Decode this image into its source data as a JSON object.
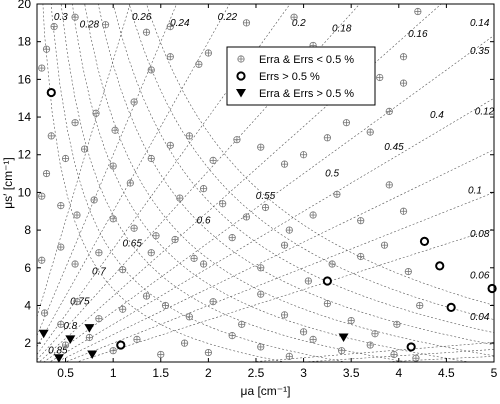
{
  "chart_data": {
    "type": "scatter",
    "xlabel": "μa [cm⁻¹]",
    "ylabel": "μs′ [cm⁻¹]",
    "xlim": [
      0.2,
      5
    ],
    "ylim": [
      1,
      20
    ],
    "xticks": [
      "0.5",
      "1",
      "1.5",
      "2",
      "2.5",
      "3",
      "3.5",
      "4",
      "4.5",
      "5"
    ],
    "yticks": [
      "2",
      "4",
      "6",
      "8",
      "10",
      "12",
      "14",
      "16",
      "18",
      "20"
    ],
    "grid": false,
    "legend_position": "top-right",
    "legend": [
      "Erra & Errs < 0.5 %",
      "Errs > 0.5 %",
      "Erra & Errs > 0.5 %"
    ],
    "series": [
      {
        "name": "Erra & Errs < 0.5 %",
        "marker": "plus-circle",
        "points": [
          [
            0.25,
            16.6
          ],
          [
            0.3,
            17.6
          ],
          [
            0.38,
            18.8
          ],
          [
            0.6,
            19.3
          ],
          [
            0.92,
            18.9
          ],
          [
            1.35,
            18.5
          ],
          [
            1.6,
            18.8
          ],
          [
            2.4,
            19.0
          ],
          [
            2.9,
            19.3
          ],
          [
            0.35,
            13.0
          ],
          [
            0.6,
            13.7
          ],
          [
            0.82,
            14.2
          ],
          [
            1.02,
            13.3
          ],
          [
            1.22,
            14.8
          ],
          [
            1.4,
            16.5
          ],
          [
            1.6,
            17.2
          ],
          [
            1.9,
            16.8
          ],
          [
            2.0,
            17.4
          ],
          [
            2.25,
            17.1
          ],
          [
            2.45,
            16.5
          ],
          [
            2.7,
            17.0
          ],
          [
            2.95,
            16.4
          ],
          [
            3.1,
            17.8
          ],
          [
            3.3,
            16.0
          ],
          [
            3.5,
            15.4
          ],
          [
            3.8,
            16.1
          ],
          [
            4.05,
            17.2
          ],
          [
            4.2,
            19.6
          ],
          [
            0.3,
            11.0
          ],
          [
            0.5,
            11.8
          ],
          [
            0.7,
            12.3
          ],
          [
            1.0,
            11.4
          ],
          [
            1.18,
            10.5
          ],
          [
            1.4,
            11.8
          ],
          [
            1.6,
            12.5
          ],
          [
            1.8,
            13.0
          ],
          [
            2.05,
            11.7
          ],
          [
            2.3,
            12.8
          ],
          [
            2.55,
            12.4
          ],
          [
            2.8,
            11.5
          ],
          [
            3.0,
            12.0
          ],
          [
            3.25,
            12.9
          ],
          [
            3.45,
            13.7
          ],
          [
            3.7,
            13.2
          ],
          [
            3.9,
            14.3
          ],
          [
            4.05,
            15.8
          ],
          [
            0.25,
            9.8
          ],
          [
            0.45,
            9.3
          ],
          [
            0.62,
            8.8
          ],
          [
            0.8,
            9.6
          ],
          [
            1.0,
            8.6
          ],
          [
            1.22,
            8.1
          ],
          [
            1.45,
            7.7
          ],
          [
            1.7,
            9.7
          ],
          [
            1.95,
            10.2
          ],
          [
            2.15,
            9.4
          ],
          [
            2.4,
            8.7
          ],
          [
            2.6,
            9.2
          ],
          [
            2.85,
            8.0
          ],
          [
            3.1,
            8.8
          ],
          [
            3.35,
            9.9
          ],
          [
            3.6,
            8.5
          ],
          [
            3.9,
            10.4
          ],
          [
            4.05,
            9.0
          ],
          [
            0.25,
            6.4
          ],
          [
            0.45,
            7.1
          ],
          [
            0.6,
            6.2
          ],
          [
            0.85,
            6.8
          ],
          [
            1.1,
            5.9
          ],
          [
            1.4,
            6.8
          ],
          [
            1.65,
            7.5
          ],
          [
            1.85,
            6.5
          ],
          [
            1.95,
            6.2
          ],
          [
            2.25,
            7.6
          ],
          [
            2.55,
            6.0
          ],
          [
            2.8,
            7.2
          ],
          [
            3.05,
            5.3
          ],
          [
            3.3,
            6.2
          ],
          [
            3.6,
            6.6
          ],
          [
            3.85,
            7.2
          ],
          [
            4.1,
            5.8
          ],
          [
            0.28,
            3.6
          ],
          [
            0.45,
            3.0
          ],
          [
            0.62,
            4.2
          ],
          [
            0.85,
            3.3
          ],
          [
            1.1,
            3.8
          ],
          [
            1.35,
            4.5
          ],
          [
            1.55,
            4.0
          ],
          [
            1.8,
            3.4
          ],
          [
            2.05,
            4.2
          ],
          [
            2.35,
            3.0
          ],
          [
            2.55,
            4.6
          ],
          [
            2.8,
            3.5
          ],
          [
            3.0,
            2.6
          ],
          [
            3.25,
            4.1
          ],
          [
            3.5,
            3.2
          ],
          [
            3.75,
            2.5
          ],
          [
            3.98,
            3.0
          ],
          [
            4.22,
            4.0
          ],
          [
            0.5,
            1.9
          ],
          [
            0.75,
            2.3
          ],
          [
            1.0,
            1.6
          ],
          [
            1.25,
            2.2
          ],
          [
            1.5,
            1.4
          ],
          [
            1.75,
            2.0
          ],
          [
            2.0,
            1.5
          ],
          [
            2.25,
            2.4
          ],
          [
            2.55,
            1.8
          ],
          [
            2.85,
            1.3
          ],
          [
            3.1,
            2.2
          ],
          [
            3.4,
            1.6
          ],
          [
            3.7,
            1.9
          ],
          [
            3.95,
            1.4
          ],
          [
            4.18,
            1.2
          ]
        ]
      },
      {
        "name": "Errs > 0.5 %",
        "marker": "circle",
        "points": [
          [
            0.35,
            15.3
          ],
          [
            1.08,
            1.9
          ],
          [
            3.25,
            5.3
          ],
          [
            4.13,
            1.8
          ],
          [
            4.27,
            7.4
          ],
          [
            4.43,
            6.1
          ],
          [
            4.55,
            3.9
          ],
          [
            4.98,
            4.9
          ]
        ]
      },
      {
        "name": "Erra & Errs > 0.5 %",
        "marker": "triangle-down",
        "points": [
          [
            0.27,
            2.5
          ],
          [
            0.43,
            1.2
          ],
          [
            0.55,
            2.2
          ],
          [
            0.75,
            2.8
          ],
          [
            0.78,
            1.4
          ],
          [
            3.42,
            2.3
          ]
        ]
      }
    ],
    "contours_mu_eff": {
      "values": [
        "0.14",
        "0.16",
        "0.18",
        "0.2",
        "0.22",
        "0.24",
        "0.26",
        "0.28",
        "0.3"
      ],
      "levels": [
        0.14,
        0.16,
        0.18,
        0.2,
        0.22,
        0.24,
        0.26,
        0.28,
        0.3
      ]
    },
    "contours_albedo": {
      "values": [
        "0.04",
        "0.06",
        "0.08",
        "0.1",
        "0.12",
        "0.35",
        "0.4",
        "0.45",
        "0.5",
        "0.55",
        "0.6",
        "0.65",
        "0.7",
        "0.75",
        "0.8",
        "0.85"
      ],
      "levels": [
        0.04,
        0.06,
        0.08,
        0.1,
        0.12,
        0.35,
        0.4,
        0.45,
        0.5,
        0.55,
        0.6,
        0.65,
        0.7,
        0.75,
        0.8,
        0.85
      ]
    }
  }
}
